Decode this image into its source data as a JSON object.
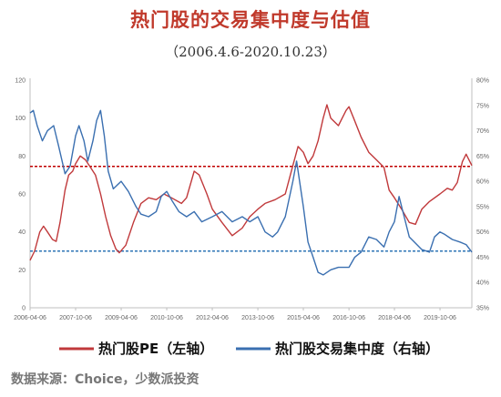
{
  "header": {
    "title": "热门股的交易集中度与估值",
    "subtitle": "（2006.4.6-2020.10.23）"
  },
  "footer": {
    "source": "数据来源：Choice，少数派投资"
  },
  "colors": {
    "pe_series": "#c0393b",
    "concentration_series": "#3a6fb0",
    "pe_reference": "#c00000",
    "concentration_reference": "#2e75b6"
  },
  "chart_data": {
    "type": "line",
    "title": "热门股的交易集中度与估值",
    "subtitle": "（2006.4.6-2020.10.23）",
    "x_tick_labels": [
      "2006-04-06",
      "2007-10-06",
      "2009-04-06",
      "2010-10-06",
      "2012-04-06",
      "2013-10-06",
      "2015-04-06",
      "2016-10-06",
      "2018-04-06",
      "2019-10-06"
    ],
    "y_left": {
      "ticks": [
        "0",
        "20",
        "40",
        "60",
        "80",
        "100",
        "120"
      ],
      "ylim": [
        0,
        120
      ]
    },
    "y_right": {
      "ticks": [
        "35%",
        "40%",
        "45%",
        "50%",
        "55%",
        "60%",
        "65%",
        "70%",
        "75%",
        "80%"
      ],
      "ylim": [
        35,
        80
      ],
      "unit": "%"
    },
    "reference_lines": [
      {
        "series": "热门股PE（左轴）",
        "axis": "left",
        "value": 74.5
      },
      {
        "series": "热门股交易集中度（右轴）",
        "axis": "right",
        "value": 46.2
      }
    ],
    "series": [
      {
        "name": "热门股PE（左轴）",
        "axis": "left",
        "points": [
          [
            "2006-04-06",
            25
          ],
          [
            "2006-06-01",
            30
          ],
          [
            "2006-08-01",
            40
          ],
          [
            "2006-09-15",
            43
          ],
          [
            "2006-11-01",
            40
          ],
          [
            "2007-01-01",
            36
          ],
          [
            "2007-02-15",
            35
          ],
          [
            "2007-04-01",
            45
          ],
          [
            "2007-06-01",
            62
          ],
          [
            "2007-07-15",
            70
          ],
          [
            "2007-09-01",
            72
          ],
          [
            "2007-10-06",
            76
          ],
          [
            "2007-12-01",
            80
          ],
          [
            "2008-02-01",
            78
          ],
          [
            "2008-04-01",
            74
          ],
          [
            "2008-06-01",
            70
          ],
          [
            "2008-08-01",
            60
          ],
          [
            "2008-10-01",
            48
          ],
          [
            "2008-12-01",
            38
          ],
          [
            "2009-02-01",
            31
          ],
          [
            "2009-03-15",
            29
          ],
          [
            "2009-06-01",
            33
          ],
          [
            "2009-09-01",
            45
          ],
          [
            "2009-12-01",
            55
          ],
          [
            "2010-03-01",
            58
          ],
          [
            "2010-06-01",
            57
          ],
          [
            "2010-09-01",
            60
          ],
          [
            "2010-12-01",
            58
          ],
          [
            "2011-04-01",
            55
          ],
          [
            "2011-06-01",
            58
          ],
          [
            "2011-09-01",
            72
          ],
          [
            "2011-11-01",
            70
          ],
          [
            "2012-02-01",
            60
          ],
          [
            "2012-04-06",
            52
          ],
          [
            "2012-08-01",
            45
          ],
          [
            "2012-12-01",
            38
          ],
          [
            "2013-04-01",
            42
          ],
          [
            "2013-07-01",
            48
          ],
          [
            "2013-10-06",
            52
          ],
          [
            "2014-01-01",
            55
          ],
          [
            "2014-05-01",
            57
          ],
          [
            "2014-09-01",
            60
          ],
          [
            "2014-12-01",
            75
          ],
          [
            "2015-02-01",
            85
          ],
          [
            "2015-04-06",
            82
          ],
          [
            "2015-06-01",
            76
          ],
          [
            "2015-08-01",
            80
          ],
          [
            "2015-10-01",
            88
          ],
          [
            "2015-12-01",
            100
          ],
          [
            "2016-01-15",
            107
          ],
          [
            "2016-03-01",
            100
          ],
          [
            "2016-06-01",
            96
          ],
          [
            "2016-09-01",
            104
          ],
          [
            "2016-10-06",
            106
          ],
          [
            "2016-12-01",
            100
          ],
          [
            "2017-03-01",
            90
          ],
          [
            "2017-06-01",
            82
          ],
          [
            "2017-09-01",
            78
          ],
          [
            "2017-12-01",
            74
          ],
          [
            "2018-02-01",
            62
          ],
          [
            "2018-04-06",
            58
          ],
          [
            "2018-07-01",
            52
          ],
          [
            "2018-10-01",
            45
          ],
          [
            "2018-12-15",
            44
          ],
          [
            "2019-03-01",
            52
          ],
          [
            "2019-06-01",
            56
          ],
          [
            "2019-10-06",
            60
          ],
          [
            "2020-01-01",
            63
          ],
          [
            "2020-03-01",
            62
          ],
          [
            "2020-05-01",
            66
          ],
          [
            "2020-07-01",
            77
          ],
          [
            "2020-08-15",
            81
          ],
          [
            "2020-10-23",
            75
          ]
        ]
      },
      {
        "name": "热门股交易集中度（右轴）",
        "axis": "right",
        "points": [
          [
            "2006-04-06",
            73.5
          ],
          [
            "2006-05-15",
            74
          ],
          [
            "2006-07-01",
            71
          ],
          [
            "2006-09-01",
            68
          ],
          [
            "2006-11-01",
            70
          ],
          [
            "2007-01-15",
            71
          ],
          [
            "2007-03-15",
            67
          ],
          [
            "2007-06-01",
            61.5
          ],
          [
            "2007-08-01",
            63
          ],
          [
            "2007-10-06",
            69
          ],
          [
            "2007-11-15",
            71
          ],
          [
            "2008-01-15",
            68
          ],
          [
            "2008-03-01",
            64
          ],
          [
            "2008-05-01",
            68
          ],
          [
            "2008-06-15",
            72
          ],
          [
            "2008-08-01",
            74
          ],
          [
            "2008-09-15",
            69
          ],
          [
            "2008-11-01",
            62
          ],
          [
            "2009-01-01",
            58.5
          ],
          [
            "2009-04-06",
            60
          ],
          [
            "2009-07-01",
            58
          ],
          [
            "2009-10-01",
            55
          ],
          [
            "2009-12-01",
            53.5
          ],
          [
            "2010-03-01",
            53
          ],
          [
            "2010-06-01",
            54
          ],
          [
            "2010-08-01",
            57
          ],
          [
            "2010-10-06",
            58
          ],
          [
            "2010-12-15",
            56
          ],
          [
            "2011-03-01",
            54
          ],
          [
            "2011-06-01",
            53
          ],
          [
            "2011-09-01",
            54
          ],
          [
            "2011-12-01",
            52
          ],
          [
            "2012-04-06",
            53
          ],
          [
            "2012-08-01",
            54
          ],
          [
            "2012-12-01",
            52
          ],
          [
            "2013-04-01",
            53
          ],
          [
            "2013-07-01",
            52
          ],
          [
            "2013-10-06",
            53
          ],
          [
            "2014-01-01",
            50
          ],
          [
            "2014-04-01",
            49
          ],
          [
            "2014-06-01",
            50
          ],
          [
            "2014-09-01",
            53
          ],
          [
            "2014-12-01",
            60
          ],
          [
            "2015-01-15",
            64
          ],
          [
            "2015-04-06",
            55
          ],
          [
            "2015-06-01",
            48
          ],
          [
            "2015-08-01",
            45
          ],
          [
            "2015-10-01",
            42
          ],
          [
            "2015-12-01",
            41.5
          ],
          [
            "2016-03-01",
            42.5
          ],
          [
            "2016-06-01",
            43
          ],
          [
            "2016-10-06",
            43
          ],
          [
            "2016-12-15",
            45
          ],
          [
            "2017-03-01",
            46
          ],
          [
            "2017-06-01",
            49
          ],
          [
            "2017-09-01",
            48.5
          ],
          [
            "2017-12-01",
            47
          ],
          [
            "2018-02-01",
            50
          ],
          [
            "2018-04-06",
            52
          ],
          [
            "2018-06-01",
            57
          ],
          [
            "2018-08-01",
            53
          ],
          [
            "2018-10-01",
            49
          ],
          [
            "2018-12-01",
            48
          ],
          [
            "2019-03-01",
            46.5
          ],
          [
            "2019-06-01",
            46
          ],
          [
            "2019-08-01",
            49
          ],
          [
            "2019-10-06",
            50
          ],
          [
            "2019-12-01",
            49.5
          ],
          [
            "2020-03-01",
            48.5
          ],
          [
            "2020-06-01",
            48
          ],
          [
            "2020-08-15",
            47.5
          ],
          [
            "2020-10-23",
            46
          ]
        ]
      }
    ],
    "legend_position": "bottom",
    "grid": false
  }
}
